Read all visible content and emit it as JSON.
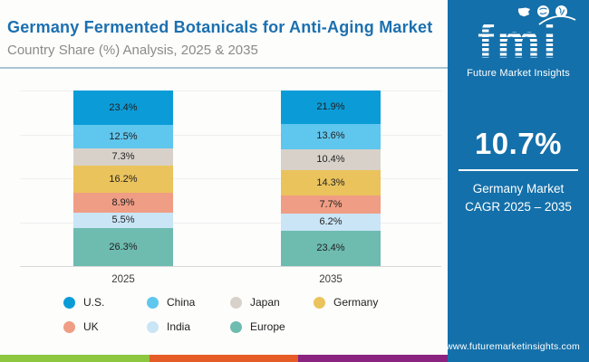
{
  "header": {
    "title": "Germany Fermented Botanicals for Anti-Aging Market",
    "subtitle": "Country Share (%) Analysis, 2025 & 2035"
  },
  "chart_data": {
    "type": "bar",
    "stacked": true,
    "title": "Germany Fermented Botanicals for Anti-Aging Market",
    "subtitle": "Country Share (%) Analysis, 2025 & 2035",
    "categories": [
      "2025",
      "2035"
    ],
    "series": [
      {
        "name": "U.S.",
        "color": "#0b9cd8",
        "values": [
          23.4,
          21.9
        ]
      },
      {
        "name": "China",
        "color": "#5fc6ee",
        "values": [
          12.5,
          13.6
        ]
      },
      {
        "name": "Japan",
        "color": "#d8d1c9",
        "values": [
          7.3,
          10.4
        ]
      },
      {
        "name": "Germany",
        "color": "#ebc35c",
        "values": [
          16.2,
          14.3
        ]
      },
      {
        "name": "UK",
        "color": "#ef9d84",
        "values": [
          8.9,
          7.7
        ]
      },
      {
        "name": "India",
        "color": "#c9e5f6",
        "values": [
          5.5,
          6.2
        ]
      },
      {
        "name": "Europe",
        "color": "#6ebbb0",
        "values": [
          26.3,
          23.4
        ]
      }
    ],
    "value_suffix": "%",
    "ylim": [
      0,
      100
    ],
    "grid": true,
    "legend_position": "bottom"
  },
  "sidebar": {
    "background": "#1470aa",
    "logo": {
      "text": "fmi",
      "tagline": "Future Market Insights",
      "icons": [
        "us-map-icon",
        "globe-icon",
        "globe-icon"
      ]
    },
    "stat": {
      "value": "10.7%",
      "line1": "Germany Market",
      "line2": "CAGR 2025 – 2035"
    },
    "website": "www.futuremarketinsights.com"
  },
  "footer_stripe": {
    "colors": [
      "#8dc63f",
      "#e65c26",
      "#8a2480"
    ]
  }
}
